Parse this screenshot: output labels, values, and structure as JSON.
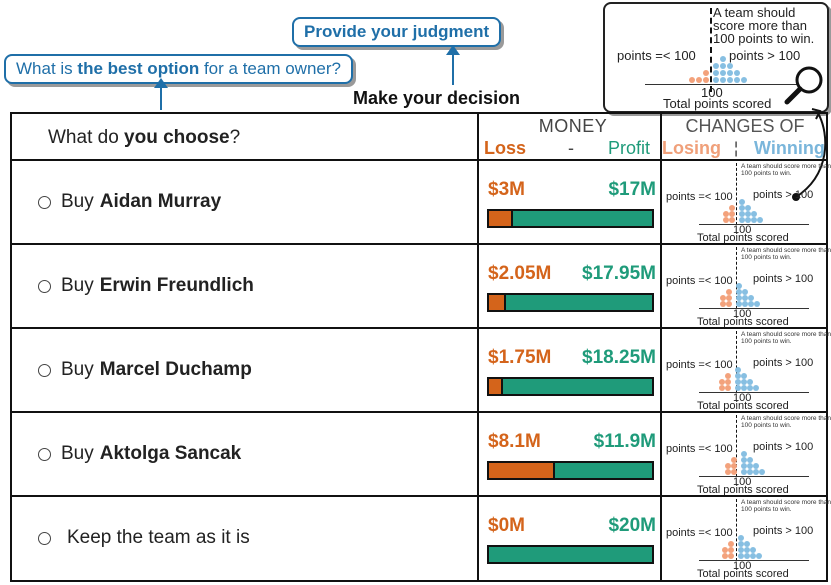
{
  "header": {
    "question_pre": "What is ",
    "question_bold": "the best option",
    "question_post": " for a team owner?",
    "judgment": "Provide your judgment",
    "decision": "Make your decision"
  },
  "legend": {
    "note": "A team should score more than 100 points to win.",
    "left_label": "points =< 100",
    "right_label": "points > 100",
    "tick": "100",
    "xlabel": "Total points scored",
    "magnifier_icon": "magnifier-icon"
  },
  "table": {
    "question_pre": "What do ",
    "question_bold": "you choose",
    "question_post": "?",
    "money": "MONEY",
    "loss": "Loss",
    "dash": "-",
    "profit": "Profit",
    "changes": "CHANGES OF",
    "losing": "Losing",
    "sep": "¦",
    "winning": "Winning"
  },
  "mini": {
    "note": "A team should score more than 100 points to win.",
    "left_label": "points =< 100",
    "right_label": "points > 100",
    "tick": "100",
    "xlabel": "Total points scored"
  },
  "rows": [
    {
      "prefix": "Buy ",
      "name": "Aidan Murray",
      "loss": "$3M",
      "profit": "$17M",
      "loss_fraction": 0.15
    },
    {
      "prefix": "Buy ",
      "name": "Erwin Freundlich",
      "loss": "$2.05M",
      "profit": "$17.95M",
      "loss_fraction": 0.1025
    },
    {
      "prefix": "Buy ",
      "name": "Marcel Duchamp",
      "loss": "$1.75M",
      "profit": "$18.25M",
      "loss_fraction": 0.0875
    },
    {
      "prefix": "Buy ",
      "name": "Aktolga Sancak",
      "loss": "$8.1M",
      "profit": "$11.9M",
      "loss_fraction": 0.405
    },
    {
      "prefix": "",
      "name": "Keep the team as it is",
      "loss": "$0M",
      "profit": "$20M",
      "loss_fraction": 0
    }
  ],
  "colors": {
    "accent": "#1f6fa8",
    "loss": "#d4641b",
    "profit": "#1f9b7a",
    "losing": "#f0a07a",
    "winning": "#7ab6db"
  }
}
